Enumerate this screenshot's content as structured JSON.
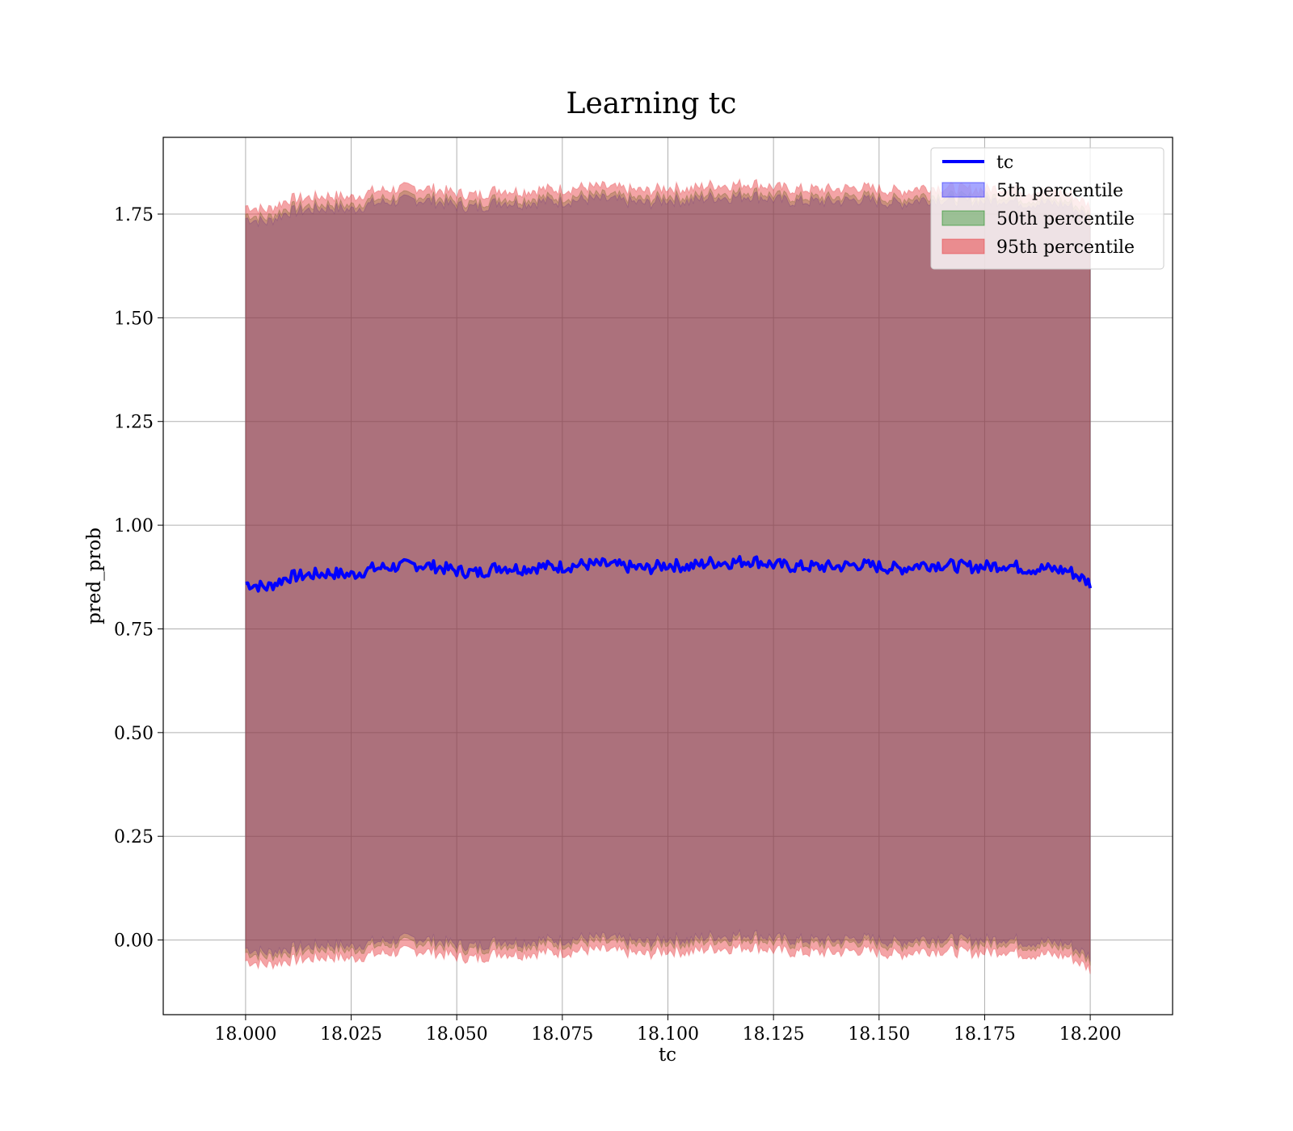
{
  "chart_data": {
    "type": "line",
    "title": "Learning tc",
    "xlabel": "tc",
    "ylabel": "pred_prob",
    "xlim": [
      17.9805,
      18.2195
    ],
    "ylim": [
      -0.18,
      1.935
    ],
    "x_ticks": [
      "18.000",
      "18.025",
      "18.050",
      "18.075",
      "18.100",
      "18.125",
      "18.150",
      "18.175",
      "18.200"
    ],
    "y_ticks": [
      "0.00",
      "0.25",
      "0.50",
      "0.75",
      "1.00",
      "1.25",
      "1.50",
      "1.75"
    ],
    "grid": true,
    "legend_position": "top-right",
    "x_range": [
      18.0,
      18.2
    ],
    "line_series": {
      "name": "tc",
      "color": "#0000ff",
      "x": [
        18.0,
        18.005,
        18.01,
        18.015,
        18.02,
        18.025,
        18.03,
        18.035,
        18.04,
        18.045,
        18.05,
        18.055,
        18.06,
        18.065,
        18.07,
        18.075,
        18.08,
        18.085,
        18.09,
        18.095,
        18.1,
        18.105,
        18.11,
        18.115,
        18.12,
        18.125,
        18.13,
        18.135,
        18.14,
        18.145,
        18.15,
        18.155,
        18.16,
        18.165,
        18.17,
        18.175,
        18.18,
        18.185,
        18.19,
        18.195,
        18.2
      ],
      "y": [
        0.86,
        0.85,
        0.875,
        0.88,
        0.885,
        0.88,
        0.895,
        0.9,
        0.905,
        0.9,
        0.89,
        0.885,
        0.9,
        0.895,
        0.9,
        0.9,
        0.905,
        0.905,
        0.9,
        0.895,
        0.905,
        0.9,
        0.91,
        0.91,
        0.915,
        0.905,
        0.9,
        0.9,
        0.9,
        0.905,
        0.9,
        0.895,
        0.905,
        0.905,
        0.9,
        0.9,
        0.905,
        0.895,
        0.895,
        0.89,
        0.86
      ]
    },
    "bands": [
      {
        "name": "5th percentile",
        "color": "#0000ff",
        "opacity": 0.3,
        "lower": [
          -0.02,
          -0.03,
          -0.02,
          -0.015,
          -0.01,
          -0.015,
          -0.005,
          0.0,
          0.005,
          0.0,
          -0.01,
          -0.015,
          0.0,
          -0.005,
          0.0,
          0.0,
          0.005,
          0.005,
          0.0,
          -0.005,
          0.005,
          0.0,
          0.01,
          0.01,
          0.015,
          0.005,
          0.0,
          0.0,
          0.0,
          0.005,
          0.0,
          -0.005,
          0.005,
          0.005,
          0.0,
          0.0,
          0.005,
          -0.005,
          -0.005,
          -0.01,
          -0.04
        ],
        "upper": [
          1.74,
          1.73,
          1.755,
          1.76,
          1.765,
          1.76,
          1.775,
          1.78,
          1.785,
          1.78,
          1.77,
          1.765,
          1.78,
          1.775,
          1.78,
          1.78,
          1.785,
          1.785,
          1.78,
          1.775,
          1.785,
          1.78,
          1.79,
          1.79,
          1.795,
          1.785,
          1.78,
          1.78,
          1.78,
          1.785,
          1.78,
          1.775,
          1.785,
          1.785,
          1.78,
          1.78,
          1.785,
          1.775,
          1.775,
          1.77,
          1.74
        ]
      },
      {
        "name": "50th percentile",
        "color": "#008000",
        "opacity": 0.3,
        "lower": [
          -0.03,
          -0.04,
          -0.03,
          -0.025,
          -0.02,
          -0.025,
          -0.015,
          -0.01,
          -0.005,
          -0.01,
          -0.02,
          -0.025,
          -0.01,
          -0.015,
          -0.01,
          -0.01,
          -0.005,
          -0.005,
          -0.01,
          -0.015,
          -0.005,
          -0.01,
          0.0,
          0.0,
          0.005,
          -0.005,
          -0.01,
          -0.01,
          -0.01,
          -0.005,
          -0.01,
          -0.015,
          -0.005,
          -0.005,
          -0.01,
          -0.01,
          -0.005,
          -0.015,
          -0.015,
          -0.02,
          -0.05
        ],
        "upper": [
          1.75,
          1.74,
          1.765,
          1.77,
          1.775,
          1.77,
          1.785,
          1.79,
          1.795,
          1.79,
          1.78,
          1.775,
          1.79,
          1.785,
          1.79,
          1.79,
          1.795,
          1.795,
          1.79,
          1.785,
          1.795,
          1.79,
          1.8,
          1.8,
          1.805,
          1.795,
          1.79,
          1.79,
          1.79,
          1.795,
          1.79,
          1.785,
          1.795,
          1.795,
          1.79,
          1.79,
          1.795,
          1.785,
          1.785,
          1.78,
          1.75
        ]
      },
      {
        "name": "95th percentile",
        "color": "#e6363a",
        "opacity": 0.45,
        "lower": [
          -0.05,
          -0.06,
          -0.05,
          -0.045,
          -0.04,
          -0.045,
          -0.035,
          -0.03,
          -0.025,
          -0.03,
          -0.04,
          -0.045,
          -0.03,
          -0.035,
          -0.03,
          -0.03,
          -0.025,
          -0.025,
          -0.03,
          -0.035,
          -0.025,
          -0.03,
          -0.02,
          -0.02,
          -0.015,
          -0.025,
          -0.03,
          -0.03,
          -0.03,
          -0.025,
          -0.03,
          -0.035,
          -0.025,
          -0.025,
          -0.03,
          -0.03,
          -0.025,
          -0.035,
          -0.035,
          -0.04,
          -0.07
        ],
        "upper": [
          1.77,
          1.76,
          1.785,
          1.79,
          1.795,
          1.79,
          1.805,
          1.81,
          1.815,
          1.81,
          1.8,
          1.795,
          1.81,
          1.805,
          1.81,
          1.81,
          1.815,
          1.815,
          1.81,
          1.805,
          1.815,
          1.81,
          1.82,
          1.82,
          1.825,
          1.815,
          1.81,
          1.81,
          1.81,
          1.815,
          1.81,
          1.805,
          1.815,
          1.815,
          1.81,
          1.81,
          1.815,
          1.805,
          1.805,
          1.8,
          1.77
        ]
      }
    ]
  }
}
